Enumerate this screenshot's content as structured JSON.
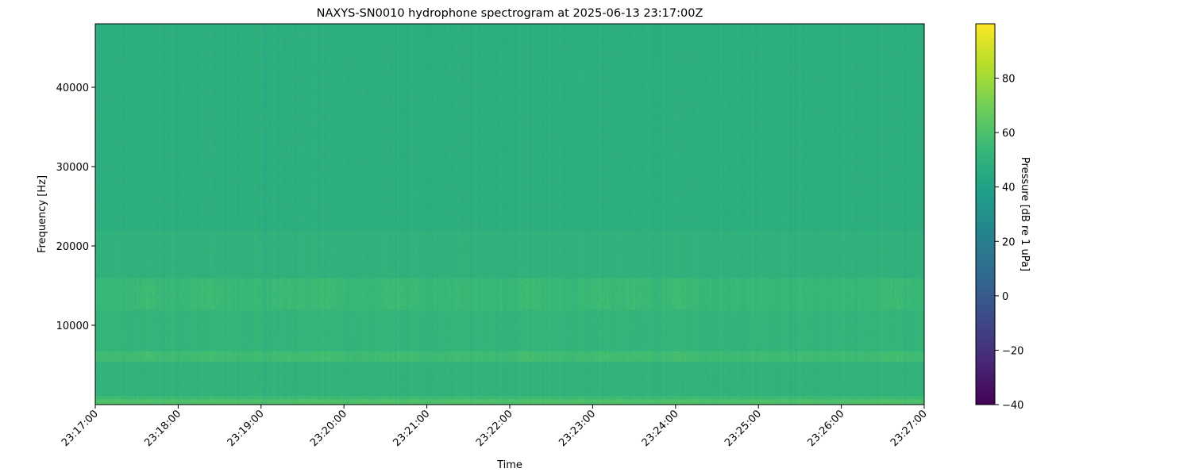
{
  "chart_data": {
    "type": "heatmap",
    "title": "NAXYS-SN0010 hydrophone spectrogram at 2025-06-13 23:17:00Z",
    "xlabel": "Time",
    "ylabel": "Frequency [Hz]",
    "colorbar_label": "Pressure [dB re 1 uPa]",
    "colormap": "viridis",
    "x_ticks": [
      "23:17:00",
      "23:18:00",
      "23:19:00",
      "23:20:00",
      "23:21:00",
      "23:22:00",
      "23:23:00",
      "23:24:00",
      "23:25:00",
      "23:26:00",
      "23:27:00"
    ],
    "x_range": [
      "23:17:00",
      "23:27:00"
    ],
    "y_ticks": [
      10000,
      20000,
      30000,
      40000
    ],
    "ylim": [
      0,
      48000
    ],
    "colorbar_ticks": [
      -40,
      -20,
      0,
      20,
      40,
      60,
      80
    ],
    "clim": [
      -40,
      100
    ],
    "frequency_bands_hz": [
      0,
      800,
      1200,
      5500,
      6800,
      12000,
      16000,
      22000,
      48000
    ],
    "band_levels_db": [
      60,
      55,
      51,
      56,
      52,
      54,
      50,
      48
    ],
    "bright_event_times": [
      "23:17:37",
      "23:18:20",
      "23:19:20",
      "23:19:47",
      "23:20:40",
      "23:22:13",
      "23:23:05",
      "23:23:30",
      "23:24:03",
      "23:26:40"
    ]
  }
}
